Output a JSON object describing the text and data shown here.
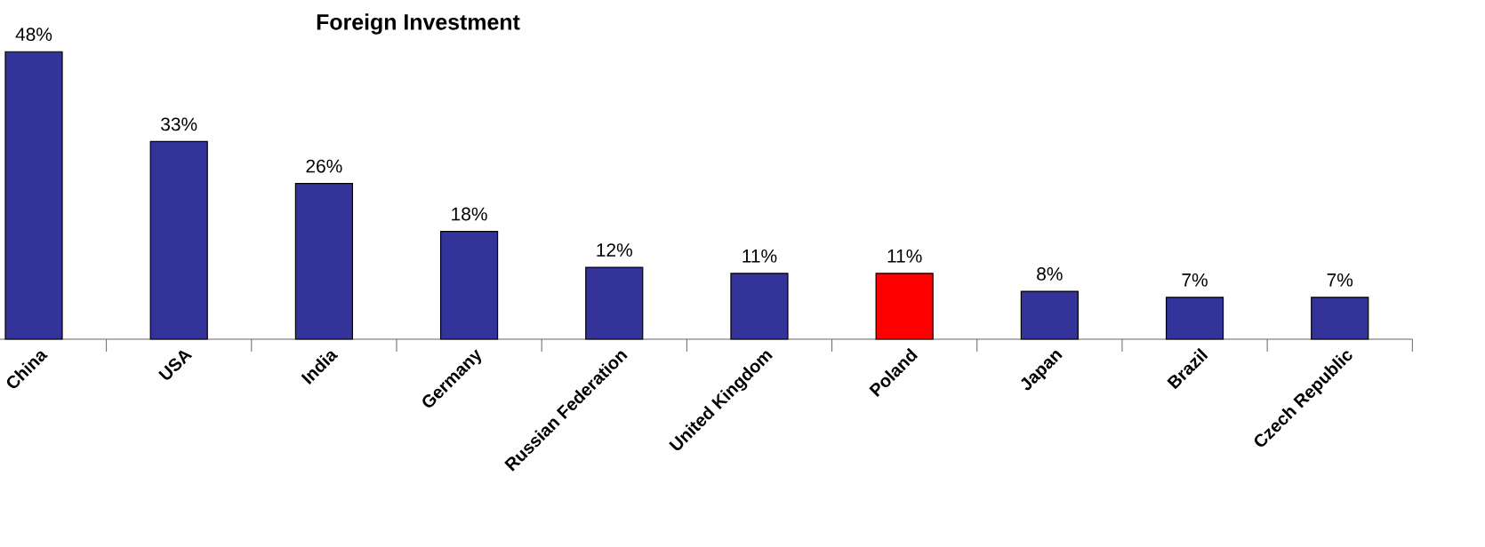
{
  "chart_data": {
    "type": "bar",
    "title": "Foreign Investment",
    "categories": [
      "China",
      "USA",
      "India",
      "Germany",
      "Russian Federation",
      "United Kingdom",
      "Poland",
      "Japan",
      "Brazil",
      "Czech Republic"
    ],
    "values": [
      48,
      33,
      26,
      18,
      12,
      11,
      11,
      8,
      7,
      7
    ],
    "colors": [
      "#333399",
      "#333399",
      "#333399",
      "#333399",
      "#333399",
      "#333399",
      "#ff0000",
      "#333399",
      "#333399",
      "#333399"
    ],
    "value_labels": [
      "48%",
      "33%",
      "26%",
      "18%",
      "12%",
      "11%",
      "11%",
      "8%",
      "7%",
      "7%"
    ]
  }
}
